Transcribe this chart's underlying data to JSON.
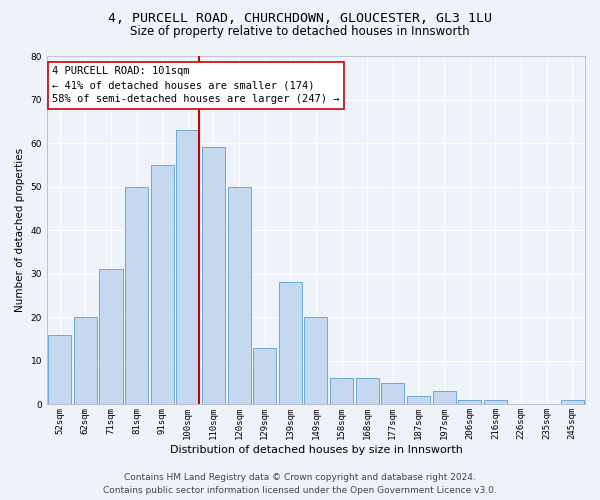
{
  "title_line1": "4, PURCELL ROAD, CHURCHDOWN, GLOUCESTER, GL3 1LU",
  "title_line2": "Size of property relative to detached houses in Innsworth",
  "xlabel": "Distribution of detached houses by size in Innsworth",
  "ylabel": "Number of detached properties",
  "bar_labels": [
    "52sqm",
    "62sqm",
    "71sqm",
    "81sqm",
    "91sqm",
    "100sqm",
    "110sqm",
    "120sqm",
    "129sqm",
    "139sqm",
    "149sqm",
    "158sqm",
    "168sqm",
    "177sqm",
    "187sqm",
    "197sqm",
    "206sqm",
    "216sqm",
    "226sqm",
    "235sqm",
    "245sqm"
  ],
  "bar_heights": [
    16,
    20,
    31,
    50,
    55,
    63,
    59,
    50,
    13,
    28,
    20,
    6,
    6,
    5,
    2,
    3,
    1,
    1,
    0,
    0,
    1
  ],
  "bar_color": "#c5d8f0",
  "bar_edge_color": "#6aaad4",
  "vline_x_idx": 5,
  "vline_color": "#cc0000",
  "annotation_line1": "4 PURCELL ROAD: 101sqm",
  "annotation_line2": "← 41% of detached houses are smaller (174)",
  "annotation_line3": "58% of semi-detached houses are larger (247) →",
  "annotation_box_color": "white",
  "annotation_box_edge": "#cc0000",
  "ylim": [
    0,
    80
  ],
  "yticks": [
    0,
    10,
    20,
    30,
    40,
    50,
    60,
    70,
    80
  ],
  "footer_line1": "Contains HM Land Registry data © Crown copyright and database right 2024.",
  "footer_line2": "Contains public sector information licensed under the Open Government Licence v3.0.",
  "background_color": "#eef2f9",
  "grid_color": "#ffffff",
  "title1_fontsize": 9.5,
  "title2_fontsize": 8.5,
  "xlabel_fontsize": 8,
  "ylabel_fontsize": 7.5,
  "tick_fontsize": 6.5,
  "annotation_fontsize": 7.5,
  "footer_fontsize": 6.5
}
